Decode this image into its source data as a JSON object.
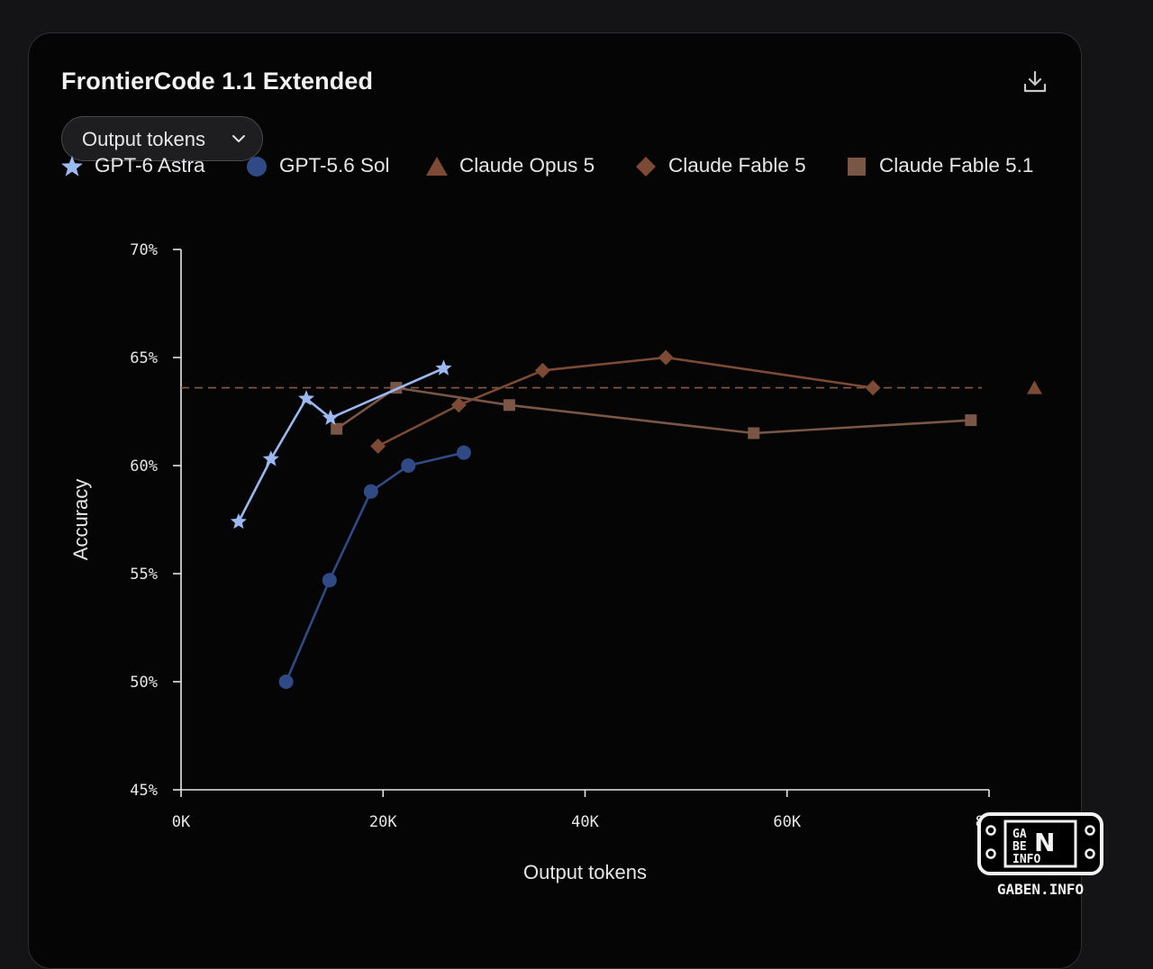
{
  "card": {
    "title": "FrontierCode 1.1 Extended",
    "download_icon": "download-icon"
  },
  "dropdown": {
    "value": "Output tokens",
    "icon": "chevron-down-icon"
  },
  "watermark": {
    "text": "GABEN.INFO",
    "logo_letters": "GA BE N INFO"
  },
  "colors": {
    "gpt6": "#9cb8f0",
    "gpt56": "#2f4a85",
    "opus": "#7c4a35",
    "fable5": "#7c4a35",
    "fable51": "#7a5647",
    "axis": "#e6e6e6",
    "ref_line": "#8a5a45"
  },
  "chart_data": {
    "type": "line",
    "title": "FrontierCode 1.1 Extended",
    "xlabel": "Output tokens",
    "ylabel": "Accuracy",
    "xlim": [
      0,
      80000
    ],
    "ylim": [
      45,
      70
    ],
    "x_ticks": [
      0,
      20000,
      40000,
      60000,
      80000
    ],
    "x_tick_labels": [
      "0K",
      "20K",
      "40K",
      "60K",
      "80K"
    ],
    "y_ticks": [
      45,
      50,
      55,
      60,
      65,
      70
    ],
    "y_tick_labels": [
      "45%",
      "50%",
      "55%",
      "60%",
      "65%",
      "70%"
    ],
    "grid": false,
    "legend_position": "top",
    "reference_line": {
      "y": 63.6,
      "style": "dashed"
    },
    "series": [
      {
        "name": "GPT-6 Astra",
        "marker": "star",
        "color": "#9cb8f0",
        "points": [
          [
            5700,
            57.4
          ],
          [
            8900,
            60.3
          ],
          [
            12400,
            63.1
          ],
          [
            14800,
            62.2
          ],
          [
            26000,
            64.5
          ]
        ]
      },
      {
        "name": "GPT-5.6 Sol",
        "marker": "circle",
        "color": "#2f4a85",
        "points": [
          [
            10400,
            50.0
          ],
          [
            14700,
            54.7
          ],
          [
            18800,
            58.8
          ],
          [
            22500,
            60.0
          ],
          [
            28000,
            60.6
          ]
        ]
      },
      {
        "name": "Claude Opus 5",
        "marker": "triangle",
        "color": "#7c4a35",
        "points": [
          [
            84500,
            63.6
          ]
        ]
      },
      {
        "name": "Claude Fable 5",
        "marker": "diamond",
        "color": "#7c4a35",
        "points": [
          [
            19500,
            60.9
          ],
          [
            27500,
            62.8
          ],
          [
            35800,
            64.4
          ],
          [
            48000,
            65.0
          ],
          [
            68500,
            63.6
          ]
        ]
      },
      {
        "name": "Claude Fable 5.1",
        "marker": "square",
        "color": "#7a5647",
        "points": [
          [
            15400,
            61.7
          ],
          [
            21300,
            63.6
          ],
          [
            32500,
            62.8
          ],
          [
            56700,
            61.5
          ],
          [
            78200,
            62.1
          ]
        ]
      }
    ]
  }
}
